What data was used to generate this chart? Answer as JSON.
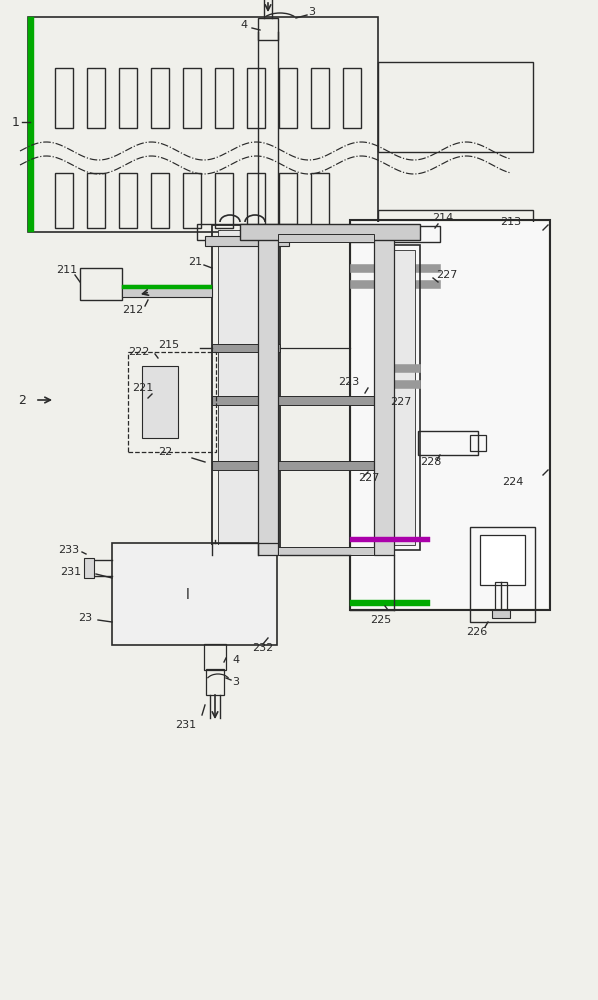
{
  "bg_color": "#f0f0eb",
  "line_color": "#2a2a2a",
  "gray_color": "#999999",
  "gray_light": "#cccccc",
  "green_color": "#00aa00",
  "purple_color": "#aa00aa",
  "figsize": [
    5.98,
    10.0
  ],
  "dpi": 100
}
